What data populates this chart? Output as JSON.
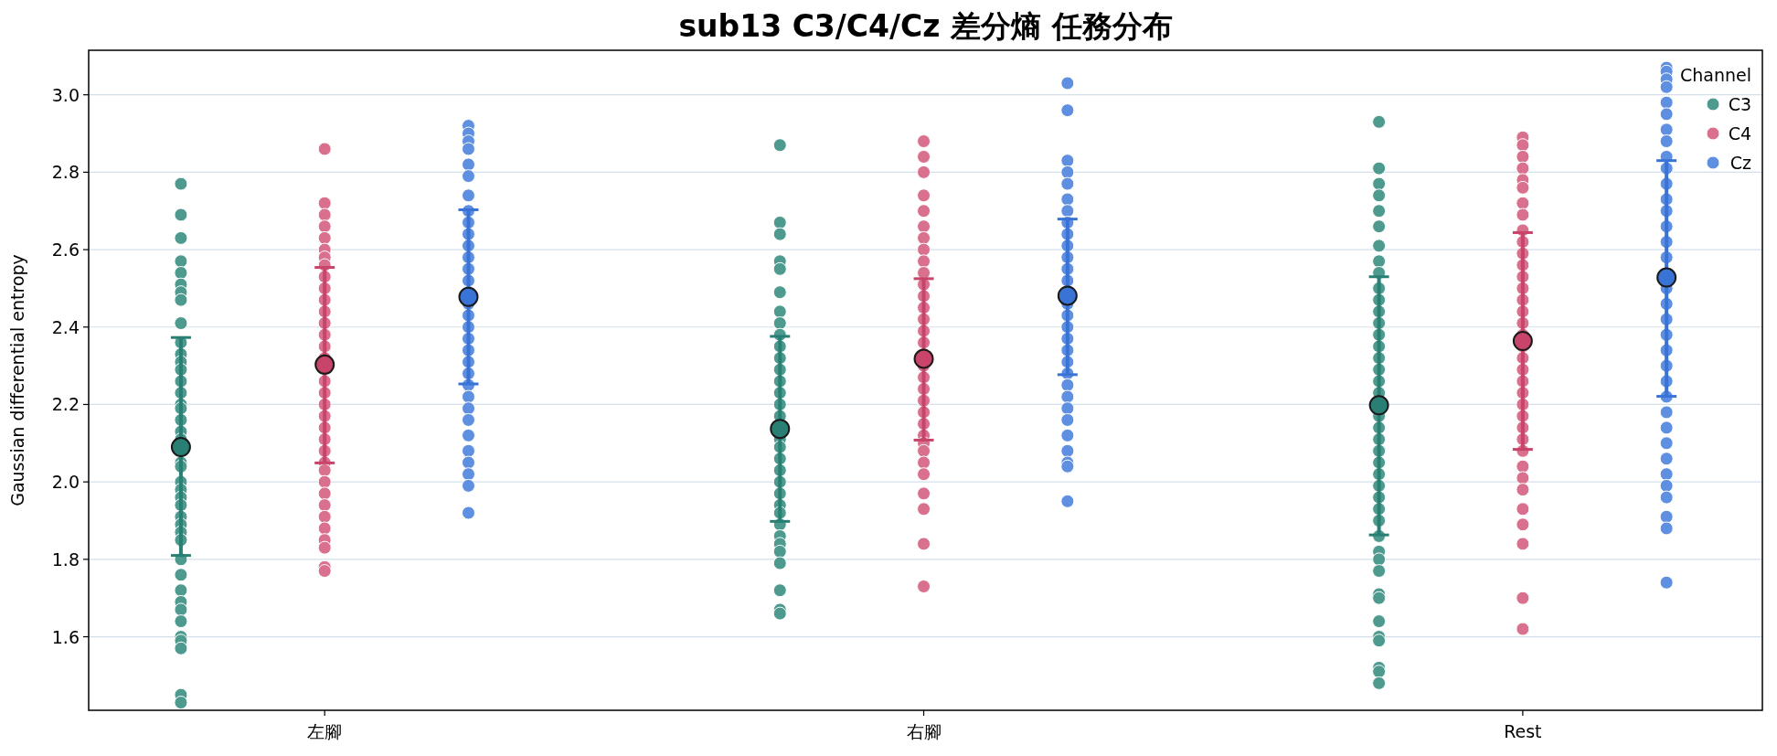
{
  "chart_data": {
    "type": "scatter",
    "title": "sub13 C3/C4/Cz 差分熵 任務分布",
    "ylabel": "Gaussian differential entropy",
    "legend_title": "Channel",
    "legend": "top right",
    "grid": "y",
    "marker": "circle",
    "categories": [
      "左腳",
      "右腳",
      "Rest"
    ],
    "ylim": [
      1.41,
      3.115
    ],
    "yticks": [
      1.6,
      1.8,
      {
        "value": 2,
        "label": "2.0"
      },
      2.2,
      2.4,
      2.6,
      2.8,
      {
        "value": 3,
        "label": "3.0"
      }
    ],
    "series": [
      {
        "name": "C3",
        "color": "#4f9a8f",
        "x": [
          "左腳",
          "左腳",
          "左腳",
          "左腳",
          "左腳",
          "左腳",
          "左腳",
          "左腳",
          "左腳",
          "左腳",
          "左腳",
          "左腳",
          "左腳",
          "左腳",
          "左腳",
          "左腳",
          "左腳",
          "左腳",
          "左腳",
          "左腳",
          "左腳",
          "左腳",
          "左腳",
          "左腳",
          "左腳",
          "左腳",
          "左腳",
          "左腳",
          "左腳",
          "左腳",
          "左腳",
          "左腳",
          "左腳",
          "左腳",
          "左腳",
          "左腳",
          "左腳",
          "左腳",
          "左腳",
          "左腳",
          "左腳",
          "右腳",
          "右腳",
          "右腳",
          "右腳",
          "右腳",
          "右腳",
          "右腳",
          "右腳",
          "右腳",
          "右腳",
          "右腳",
          "右腳",
          "右腳",
          "右腳",
          "右腳",
          "右腳",
          "右腳",
          "右腳",
          "右腳",
          "右腳",
          "右腳",
          "右腳",
          "右腳",
          "右腳",
          "右腳",
          "右腳",
          "右腳",
          "右腳",
          "右腳",
          "右腳",
          "右腳",
          "右腳",
          "Rest",
          "Rest",
          "Rest",
          "Rest",
          "Rest",
          "Rest",
          "Rest",
          "Rest",
          "Rest",
          "Rest",
          "Rest",
          "Rest",
          "Rest",
          "Rest",
          "Rest",
          "Rest",
          "Rest",
          "Rest",
          "Rest",
          "Rest",
          "Rest",
          "Rest",
          "Rest",
          "Rest",
          "Rest",
          "Rest",
          "Rest",
          "Rest",
          "Rest",
          "Rest",
          "Rest",
          "Rest",
          "Rest",
          "Rest",
          "Rest",
          "Rest",
          "Rest",
          "Rest",
          "Rest",
          "Rest",
          "Rest"
        ],
        "values": [
          2.77,
          2.69,
          2.63,
          2.57,
          2.54,
          2.51,
          2.49,
          2.47,
          2.41,
          2.36,
          2.33,
          2.31,
          2.29,
          2.26,
          2.23,
          2.2,
          2.19,
          2.16,
          2.13,
          2.11,
          2.05,
          2.04,
          2.0,
          1.98,
          1.96,
          1.94,
          1.91,
          1.89,
          1.87,
          1.85,
          1.8,
          1.76,
          1.72,
          1.69,
          1.67,
          1.64,
          1.6,
          1.59,
          1.57,
          1.45,
          1.43,
          2.87,
          2.67,
          2.64,
          2.57,
          2.55,
          2.49,
          2.44,
          2.41,
          2.38,
          2.35,
          2.32,
          2.29,
          2.26,
          2.23,
          2.2,
          2.17,
          2.11,
          2.09,
          2.06,
          2.03,
          2.0,
          1.97,
          1.94,
          1.92,
          1.89,
          1.86,
          1.84,
          1.82,
          1.79,
          1.72,
          1.67,
          1.66,
          2.93,
          2.81,
          2.77,
          2.74,
          2.7,
          2.66,
          2.61,
          2.57,
          2.54,
          2.5,
          2.47,
          2.44,
          2.41,
          2.38,
          2.35,
          2.32,
          2.29,
          2.26,
          2.23,
          2.17,
          2.14,
          2.11,
          2.08,
          2.05,
          2.02,
          1.99,
          1.96,
          1.93,
          1.9,
          1.86,
          1.82,
          1.8,
          1.77,
          1.71,
          1.7,
          1.64,
          1.6,
          1.59,
          1.52,
          1.51,
          1.48
        ]
      },
      {
        "name": "C4",
        "color": "#d9708e",
        "x": [
          "左腳",
          "左腳",
          "左腳",
          "左腳",
          "左腳",
          "左腳",
          "左腳",
          "左腳",
          "左腳",
          "左腳",
          "左腳",
          "左腳",
          "左腳",
          "左腳",
          "左腳",
          "左腳",
          "左腳",
          "左腳",
          "左腳",
          "左腳",
          "左腳",
          "左腳",
          "左腳",
          "左腳",
          "左腳",
          "左腳",
          "左腳",
          "左腳",
          "左腳",
          "左腳",
          "左腳",
          "左腳",
          "左腳",
          "左腳",
          "右腳",
          "右腳",
          "右腳",
          "右腳",
          "右腳",
          "右腳",
          "右腳",
          "右腳",
          "右腳",
          "右腳",
          "右腳",
          "右腳",
          "右腳",
          "右腳",
          "右腳",
          "右腳",
          "右腳",
          "右腳",
          "右腳",
          "右腳",
          "右腳",
          "右腳",
          "右腳",
          "右腳",
          "右腳",
          "右腳",
          "右腳",
          "右腳",
          "右腳",
          "右腳",
          "右腳",
          "右腳",
          "Rest",
          "Rest",
          "Rest",
          "Rest",
          "Rest",
          "Rest",
          "Rest",
          "Rest",
          "Rest",
          "Rest",
          "Rest",
          "Rest",
          "Rest",
          "Rest",
          "Rest",
          "Rest",
          "Rest",
          "Rest",
          "Rest",
          "Rest",
          "Rest",
          "Rest",
          "Rest",
          "Rest",
          "Rest",
          "Rest",
          "Rest",
          "Rest",
          "Rest",
          "Rest",
          "Rest",
          "Rest",
          "Rest",
          "Rest",
          "Rest",
          "Rest"
        ],
        "values": [
          2.86,
          2.72,
          2.69,
          2.66,
          2.63,
          2.6,
          2.58,
          2.56,
          2.53,
          2.5,
          2.47,
          2.44,
          2.41,
          2.38,
          2.35,
          2.32,
          2.26,
          2.23,
          2.2,
          2.17,
          2.14,
          2.11,
          2.08,
          2.05,
          2.03,
          2.0,
          1.97,
          1.94,
          1.91,
          1.88,
          1.85,
          1.83,
          1.78,
          1.77,
          2.88,
          2.84,
          2.8,
          2.74,
          2.7,
          2.66,
          2.63,
          2.6,
          2.57,
          2.54,
          2.51,
          2.48,
          2.45,
          2.42,
          2.39,
          2.36,
          2.33,
          2.3,
          2.27,
          2.24,
          2.21,
          2.18,
          2.15,
          2.12,
          2.1,
          2.08,
          2.05,
          2.02,
          1.97,
          1.93,
          1.84,
          1.73,
          2.89,
          2.87,
          2.84,
          2.81,
          2.78,
          2.76,
          2.72,
          2.69,
          2.65,
          2.62,
          2.59,
          2.56,
          2.53,
          2.5,
          2.47,
          2.44,
          2.41,
          2.38,
          2.35,
          2.32,
          2.29,
          2.26,
          2.23,
          2.2,
          2.17,
          2.14,
          2.11,
          2.08,
          2.04,
          2.01,
          1.98,
          1.93,
          1.89,
          1.84,
          1.7,
          1.62
        ]
      },
      {
        "name": "Cz",
        "color": "#5e8fe0",
        "x": [
          "左腳",
          "左腳",
          "左腳",
          "左腳",
          "左腳",
          "左腳",
          "左腳",
          "左腳",
          "左腳",
          "左腳",
          "左腳",
          "左腳",
          "左腳",
          "左腳",
          "左腳",
          "左腳",
          "左腳",
          "左腳",
          "左腳",
          "左腳",
          "左腳",
          "左腳",
          "左腳",
          "左腳",
          "左腳",
          "左腳",
          "左腳",
          "左腳",
          "左腳",
          "左腳",
          "左腳",
          "左腳",
          "右腳",
          "右腳",
          "右腳",
          "右腳",
          "右腳",
          "右腳",
          "右腳",
          "右腳",
          "右腳",
          "右腳",
          "右腳",
          "右腳",
          "右腳",
          "右腳",
          "右腳",
          "右腳",
          "右腳",
          "右腳",
          "右腳",
          "右腳",
          "右腳",
          "右腳",
          "右腳",
          "右腳",
          "右腳",
          "右腳",
          "右腳",
          "右腳",
          "右腳",
          "Rest",
          "Rest",
          "Rest",
          "Rest",
          "Rest",
          "Rest",
          "Rest",
          "Rest",
          "Rest",
          "Rest",
          "Rest",
          "Rest",
          "Rest",
          "Rest",
          "Rest",
          "Rest",
          "Rest",
          "Rest",
          "Rest",
          "Rest",
          "Rest",
          "Rest",
          "Rest",
          "Rest",
          "Rest",
          "Rest",
          "Rest",
          "Rest",
          "Rest",
          "Rest",
          "Rest",
          "Rest",
          "Rest",
          "Rest"
        ],
        "values": [
          2.92,
          2.9,
          2.88,
          2.86,
          2.82,
          2.79,
          2.74,
          2.7,
          2.67,
          2.64,
          2.61,
          2.58,
          2.55,
          2.52,
          2.49,
          2.46,
          2.43,
          2.4,
          2.37,
          2.34,
          2.31,
          2.28,
          2.25,
          2.22,
          2.19,
          2.16,
          2.12,
          2.08,
          2.05,
          2.02,
          1.99,
          1.92,
          3.03,
          2.96,
          2.83,
          2.8,
          2.77,
          2.73,
          2.7,
          2.67,
          2.64,
          2.61,
          2.58,
          2.55,
          2.52,
          2.46,
          2.43,
          2.4,
          2.37,
          2.34,
          2.31,
          2.28,
          2.25,
          2.22,
          2.19,
          2.16,
          2.12,
          2.08,
          2.05,
          2.04,
          1.95,
          3.07,
          3.06,
          3.04,
          3.02,
          2.98,
          2.95,
          2.91,
          2.88,
          2.84,
          2.81,
          2.77,
          2.73,
          2.7,
          2.66,
          2.62,
          2.58,
          2.5,
          2.46,
          2.42,
          2.38,
          2.34,
          2.3,
          2.26,
          2.22,
          2.18,
          2.14,
          2.1,
          2.06,
          2.02,
          1.99,
          1.96,
          1.91,
          1.88,
          1.74
        ]
      },
      {
        "color": "#2a7f74",
        "x": [
          "左腳",
          "右腳",
          "Rest"
        ],
        "values": [
          2.09,
          2.137,
          2.198
        ],
        "errors": [
          [
            1.81,
            2.373
          ],
          [
            1.898,
            2.376
          ],
          [
            1.863,
            2.53
          ]
        ]
      },
      {
        "color": "#c8446a",
        "x": [
          "左腳",
          "右腳",
          "Rest"
        ],
        "values": [
          2.303,
          2.318,
          2.364
        ],
        "errors": [
          [
            2.049,
            2.554
          ],
          [
            2.108,
            2.525
          ],
          [
            2.084,
            2.644
          ]
        ]
      },
      {
        "color": "#3a73d6",
        "x": [
          "左腳",
          "右腳",
          "Rest"
        ],
        "values": [
          2.478,
          2.481,
          2.528
        ],
        "errors": [
          [
            2.253,
            2.703
          ],
          [
            2.277,
            2.679
          ],
          [
            2.221,
            2.83
          ]
        ]
      }
    ]
  }
}
